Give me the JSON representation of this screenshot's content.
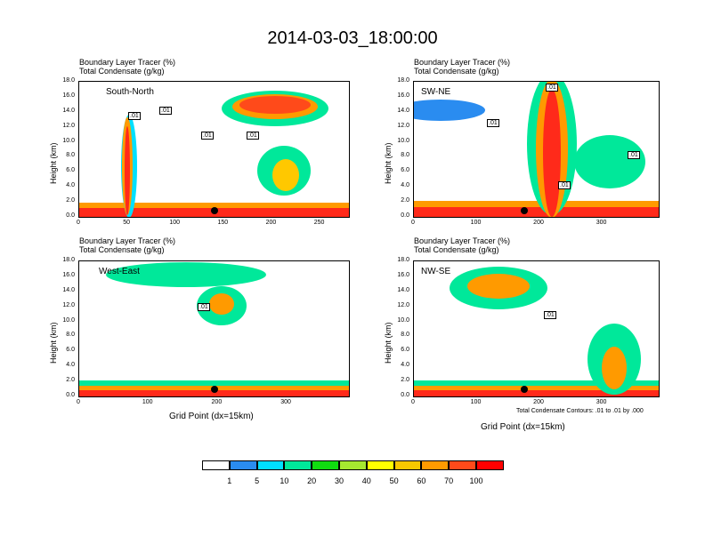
{
  "title": "2014-03-03_18:00:00",
  "panel_header": {
    "line1": "Boundary Layer Tracer   (%)",
    "line2": "Total Condensate   (g/kg)"
  },
  "axis": {
    "ylabel": "Height (km)",
    "xlabel": "Grid Point (dx=15km)",
    "yticks": [
      "18.0",
      "16.0",
      "14.0",
      "12.0",
      "10.0",
      "8.0",
      "6.0",
      "4.0",
      "2.0",
      "0.0"
    ]
  },
  "contour_note": "Total Condensate Contours: .01 to .01 by .000",
  "colorbar": {
    "colors": [
      "#ffffff",
      "#2a8cf0",
      "#00e0ff",
      "#00e89a",
      "#10dc10",
      "#a6e830",
      "#ffff00",
      "#f8c800",
      "#ff9a00",
      "#ff4a1a",
      "#ff0000"
    ],
    "labels": [
      "1",
      "5",
      "10",
      "20",
      "30",
      "40",
      "50",
      "60",
      "70",
      "100"
    ]
  },
  "chart_data": [
    {
      "type": "heatmap",
      "title": "South-North",
      "xlim": [
        0,
        280
      ],
      "ylim": [
        0,
        18
      ],
      "xticks": [
        "0",
        "50",
        "100",
        "150",
        "200",
        "250"
      ],
      "contour_labels": [
        ".01",
        ".01",
        ".01",
        ".01"
      ],
      "ylabel": "Height (km)",
      "xlabel": ""
    },
    {
      "type": "heatmap",
      "title": "SW-NE",
      "xlim": [
        0,
        390
      ],
      "ylim": [
        0,
        18
      ],
      "xticks": [
        "0",
        "100",
        "200",
        "300"
      ],
      "contour_labels": [
        ".01",
        ".01",
        ".01",
        ".01"
      ],
      "ylabel": "Height (km)",
      "xlabel": ""
    },
    {
      "type": "heatmap",
      "title": "West-East",
      "xlim": [
        0,
        390
      ],
      "ylim": [
        0,
        18
      ],
      "xticks": [
        "0",
        "100",
        "200",
        "300"
      ],
      "contour_labels": [
        ".01"
      ],
      "ylabel": "Height (km)",
      "xlabel": "Grid Point (dx=15km)"
    },
    {
      "type": "heatmap",
      "title": "NW-SE",
      "xlim": [
        0,
        390
      ],
      "ylim": [
        0,
        18
      ],
      "xticks": [
        "0",
        "100",
        "200",
        "300"
      ],
      "contour_labels": [
        ".01"
      ],
      "ylabel": "Height (km)",
      "xlabel": "Grid Point (dx=15km)"
    }
  ]
}
